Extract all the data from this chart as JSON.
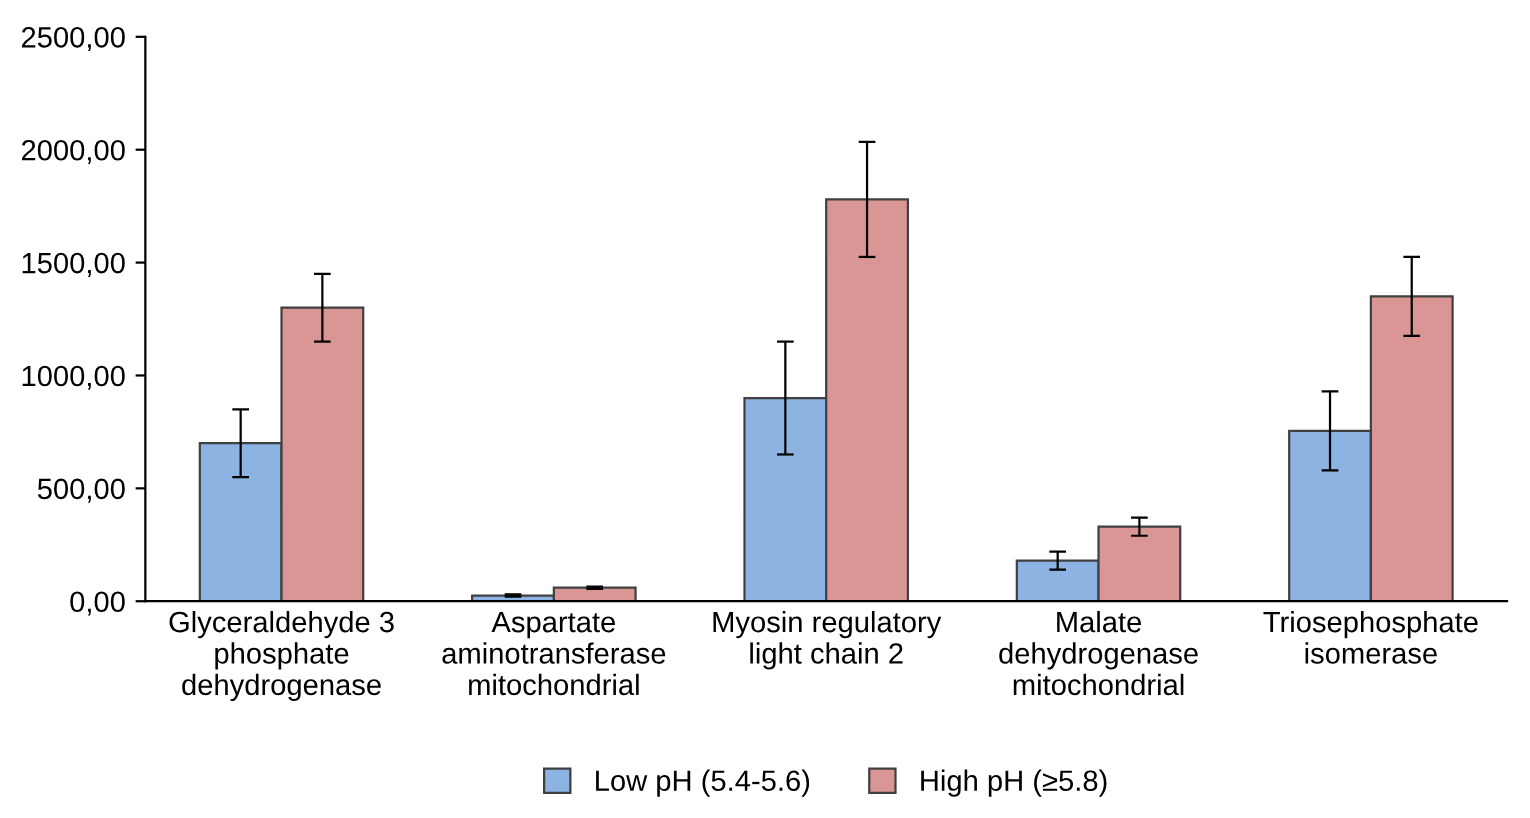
{
  "chart_data": {
    "type": "bar",
    "categories": [
      "Glyceraldehyde 3\nphosphate\ndehydrogenase",
      "Aspartate\naminotransferase\nmitochondrial",
      "Myosin regulatory\nlight chain 2",
      "Malate\ndehydrogenase\nmitochondrial",
      "Triosephosphate\nisomerase"
    ],
    "series": [
      {
        "name": "Low pH (5.4-5.6)",
        "color": "#8db3e2",
        "values": [
          700,
          25,
          900,
          180,
          755
        ],
        "errors": [
          150,
          5,
          250,
          40,
          175
        ]
      },
      {
        "name": "High pH (≥5.8)",
        "color": "#d99694",
        "values": [
          1300,
          60,
          1780,
          330,
          1350
        ],
        "errors": [
          150,
          5,
          255,
          40,
          175
        ]
      }
    ],
    "ylim": [
      0,
      2500
    ],
    "yticks": [
      {
        "value": 0,
        "label": "0,00"
      },
      {
        "value": 500,
        "label": "500,00"
      },
      {
        "value": 1000,
        "label": "1000,00"
      },
      {
        "value": 1500,
        "label": "1500,00"
      },
      {
        "value": 2000,
        "label": "2000,00"
      },
      {
        "value": 2500,
        "label": "2500,00"
      }
    ],
    "grid": false,
    "legend": "bottom"
  }
}
